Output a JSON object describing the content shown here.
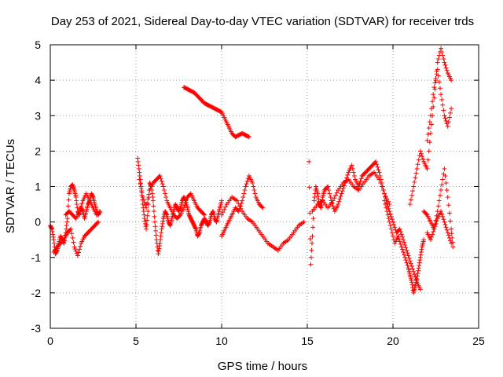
{
  "chart_data": {
    "type": "scatter",
    "title": "Day 253 of 2021, Sidereal Day-to-day VTEC variation (SDTVAR) for receiver trds",
    "xlabel": "GPS time / hours",
    "ylabel": "SDTVAR / TECUs",
    "xlim": [
      0,
      25
    ],
    "ylim": [
      -3,
      5
    ],
    "x_ticks": [
      0,
      5,
      10,
      15,
      20,
      25
    ],
    "y_ticks": [
      -3,
      -2,
      -1,
      0,
      1,
      2,
      3,
      4,
      5
    ],
    "grid": true,
    "marker": "+",
    "color": "#ff0000",
    "series": [
      {
        "name": "SDTVAR",
        "segments": [
          {
            "x": [
              0.0,
              0.1,
              0.2,
              0.3,
              0.4,
              0.5,
              0.6,
              0.7,
              0.8,
              0.9,
              1.0,
              1.1,
              1.2,
              1.3,
              1.4,
              1.5,
              1.6,
              1.7,
              1.8,
              1.9,
              2.0,
              2.1,
              2.2,
              2.3,
              2.4,
              2.5,
              2.6,
              2.7,
              2.8,
              2.9
            ],
            "y": [
              -0.1,
              -0.2,
              -0.5,
              -0.9,
              -0.8,
              -0.6,
              -0.4,
              -0.5,
              -0.6,
              -0.3,
              0.1,
              0.8,
              1.0,
              1.05,
              0.9,
              0.7,
              0.3,
              0.2,
              0.4,
              0.3,
              0.1,
              0.3,
              0.5,
              0.6,
              0.8,
              0.7,
              0.5,
              0.3,
              0.2,
              0.3
            ]
          },
          {
            "x": [
              0.2,
              0.4,
              0.6,
              0.8,
              1.0,
              1.2,
              1.4,
              1.6,
              1.8,
              2.0,
              2.2,
              2.4,
              2.6,
              2.8
            ],
            "y": [
              -0.85,
              -0.7,
              -0.6,
              -0.5,
              -0.3,
              -0.2,
              -0.7,
              -0.95,
              -0.6,
              -0.4,
              -0.3,
              -0.2,
              -0.1,
              0.0
            ]
          },
          {
            "x": [
              0.9,
              1.1,
              1.3,
              1.5,
              1.7,
              1.9,
              2.1,
              2.3,
              2.5,
              2.7
            ],
            "y": [
              0.2,
              0.3,
              0.2,
              0.1,
              0.3,
              0.6,
              0.8,
              0.6,
              0.4,
              0.2
            ]
          },
          {
            "x": [
              5.1,
              5.2,
              5.3,
              5.4,
              5.5,
              5.6,
              5.7,
              5.8,
              5.9,
              6.0,
              6.1,
              6.2,
              6.3,
              6.4,
              6.5,
              6.6,
              6.7,
              6.8,
              6.9,
              7.0,
              7.1,
              7.2,
              7.3,
              7.4,
              7.5,
              7.6,
              7.7,
              7.8,
              7.9,
              8.0,
              8.1,
              8.2,
              8.3,
              8.4,
              8.5,
              8.6,
              8.7,
              8.8,
              8.9,
              9.0,
              9.1,
              9.2,
              9.3,
              9.4,
              9.5,
              9.6,
              9.7,
              9.8,
              9.9,
              10.0
            ],
            "y": [
              1.8,
              1.4,
              1.0,
              0.5,
              0.1,
              -0.2,
              0.3,
              1.1,
              1.0,
              0.6,
              0.0,
              -0.5,
              -0.9,
              -0.6,
              -0.2,
              0.1,
              0.3,
              0.2,
              0.0,
              -0.1,
              0.1,
              0.3,
              0.5,
              0.4,
              0.3,
              0.4,
              0.6,
              0.7,
              0.6,
              0.4,
              0.2,
              0.1,
              0.0,
              -0.1,
              -0.2,
              -0.4,
              -0.3,
              -0.1,
              0.0,
              0.1,
              0.0,
              -0.1,
              0.0,
              0.2,
              0.3,
              0.1,
              0.0,
              0.2,
              0.4,
              0.6
            ]
          },
          {
            "x": [
              5.2,
              5.4,
              5.6,
              5.8,
              6.0,
              6.2,
              6.4,
              6.6,
              6.8,
              7.0,
              7.2,
              7.4,
              7.6,
              7.8,
              8.0,
              8.2,
              8.4,
              8.6,
              8.8,
              9.0
            ],
            "y": [
              1.2,
              0.7,
              0.4,
              0.9,
              1.1,
              1.2,
              1.3,
              1.0,
              0.6,
              0.4,
              0.2,
              0.1,
              0.2,
              0.4,
              0.7,
              0.8,
              0.6,
              0.4,
              0.3,
              0.2
            ]
          },
          {
            "x": [
              10.0,
              10.2,
              10.4,
              10.6,
              10.8,
              11.0,
              11.2,
              11.4,
              11.6,
              11.8,
              12.0,
              12.2,
              12.4
            ],
            "y": [
              -0.4,
              -0.2,
              0.0,
              0.2,
              0.4,
              0.3,
              0.6,
              1.0,
              1.3,
              1.1,
              0.7,
              0.5,
              0.4
            ]
          },
          {
            "x": [
              10.0,
              10.3,
              10.6,
              10.9,
              11.2,
              11.5,
              11.8,
              12.1,
              12.4,
              12.7,
              13.0,
              13.3,
              13.6,
              13.9,
              14.2,
              14.5,
              14.8
            ],
            "y": [
              0.2,
              0.5,
              0.7,
              0.6,
              0.3,
              0.1,
              0.0,
              -0.2,
              -0.4,
              -0.6,
              -0.7,
              -0.8,
              -0.6,
              -0.5,
              -0.3,
              -0.1,
              0.0
            ]
          },
          {
            "x": [
              7.8,
              8.0,
              8.2,
              8.4,
              8.6,
              8.8,
              9.0,
              9.2,
              9.4,
              9.6,
              9.8,
              10.0,
              10.2,
              10.4,
              10.6,
              10.8,
              11.0,
              11.2,
              11.4,
              11.6
            ],
            "y": [
              3.8,
              3.75,
              3.7,
              3.65,
              3.55,
              3.45,
              3.35,
              3.3,
              3.25,
              3.2,
              3.15,
              3.1,
              2.9,
              2.7,
              2.5,
              2.4,
              2.45,
              2.5,
              2.45,
              2.4
            ]
          },
          {
            "x": [
              15.1,
              15.2,
              15.3,
              15.4,
              15.5,
              15.6,
              15.7,
              15.8,
              15.9,
              16.0,
              16.2,
              16.4,
              16.6,
              16.8,
              17.0,
              17.2,
              17.4,
              17.6,
              17.8,
              18.0,
              18.2,
              18.4,
              18.6,
              18.8,
              19.0,
              19.2,
              19.4,
              19.6,
              19.8,
              20.0
            ],
            "y": [
              1.7,
              -1.2,
              -0.4,
              0.6,
              1.0,
              0.8,
              0.5,
              0.4,
              0.7,
              0.9,
              1.0,
              0.6,
              0.3,
              0.5,
              0.8,
              1.1,
              1.4,
              1.6,
              1.2,
              1.0,
              1.3,
              1.4,
              1.5,
              1.6,
              1.7,
              1.4,
              1.0,
              0.6,
              0.3,
              0.0
            ]
          },
          {
            "x": [
              15.3,
              15.6,
              15.9,
              16.2,
              16.5,
              16.8,
              17.1,
              17.4,
              17.7,
              18.0,
              18.3,
              18.6,
              18.9,
              19.2,
              19.5,
              19.8
            ],
            "y": [
              0.3,
              0.5,
              0.6,
              0.4,
              0.6,
              0.9,
              1.1,
              1.2,
              1.0,
              0.9,
              1.1,
              1.3,
              1.4,
              1.2,
              0.8,
              0.5
            ]
          },
          {
            "x": [
              19.5,
              19.7,
              19.9,
              20.1,
              20.3,
              20.5,
              20.7,
              20.9,
              21.0,
              21.1,
              21.2,
              21.3,
              21.4,
              21.5,
              21.6,
              21.7,
              21.8
            ],
            "y": [
              0.6,
              0.2,
              -0.2,
              -0.6,
              -0.4,
              -0.7,
              -1.0,
              -1.3,
              -1.5,
              -1.7,
              -2.0,
              -1.8,
              -1.6,
              -1.3,
              -1.0,
              -0.7,
              -0.5
            ]
          },
          {
            "x": [
              20.0,
              20.2,
              20.4,
              20.6,
              20.8,
              21.0,
              21.2,
              21.4,
              21.6
            ],
            "y": [
              0.0,
              -0.3,
              -0.2,
              -0.5,
              -0.8,
              -1.1,
              -1.4,
              -1.7,
              -1.9
            ]
          },
          {
            "x": [
              21.0,
              21.2,
              21.4,
              21.6,
              21.8,
              22.0,
              22.2,
              22.4,
              22.6,
              22.8,
              23.0,
              23.2,
              23.4
            ],
            "y": [
              0.5,
              1.0,
              1.5,
              2.0,
              1.7,
              1.5,
              2.5,
              3.5,
              4.5,
              4.9,
              4.5,
              4.2,
              4.0
            ]
          },
          {
            "x": [
              21.8,
              22.0,
              22.2,
              22.4,
              22.6,
              22.8,
              23.0,
              23.2,
              23.4
            ],
            "y": [
              0.3,
              0.2,
              0.0,
              -0.2,
              0.1,
              0.3,
              0.0,
              -0.3,
              -0.6
            ]
          },
          {
            "x": [
              22.0,
              22.2,
              22.4,
              22.6,
              22.8,
              23.0,
              23.2,
              23.4
            ],
            "y": [
              2.3,
              3.0,
              3.8,
              4.3,
              3.6,
              3.0,
              2.7,
              3.2
            ]
          },
          {
            "x": [
              22.0,
              22.2,
              22.4,
              22.6,
              22.8,
              23.0,
              23.2,
              23.4,
              23.5
            ],
            "y": [
              -0.3,
              -0.5,
              -0.2,
              0.3,
              0.9,
              1.5,
              0.7,
              -0.2,
              -0.7
            ]
          }
        ]
      }
    ]
  }
}
